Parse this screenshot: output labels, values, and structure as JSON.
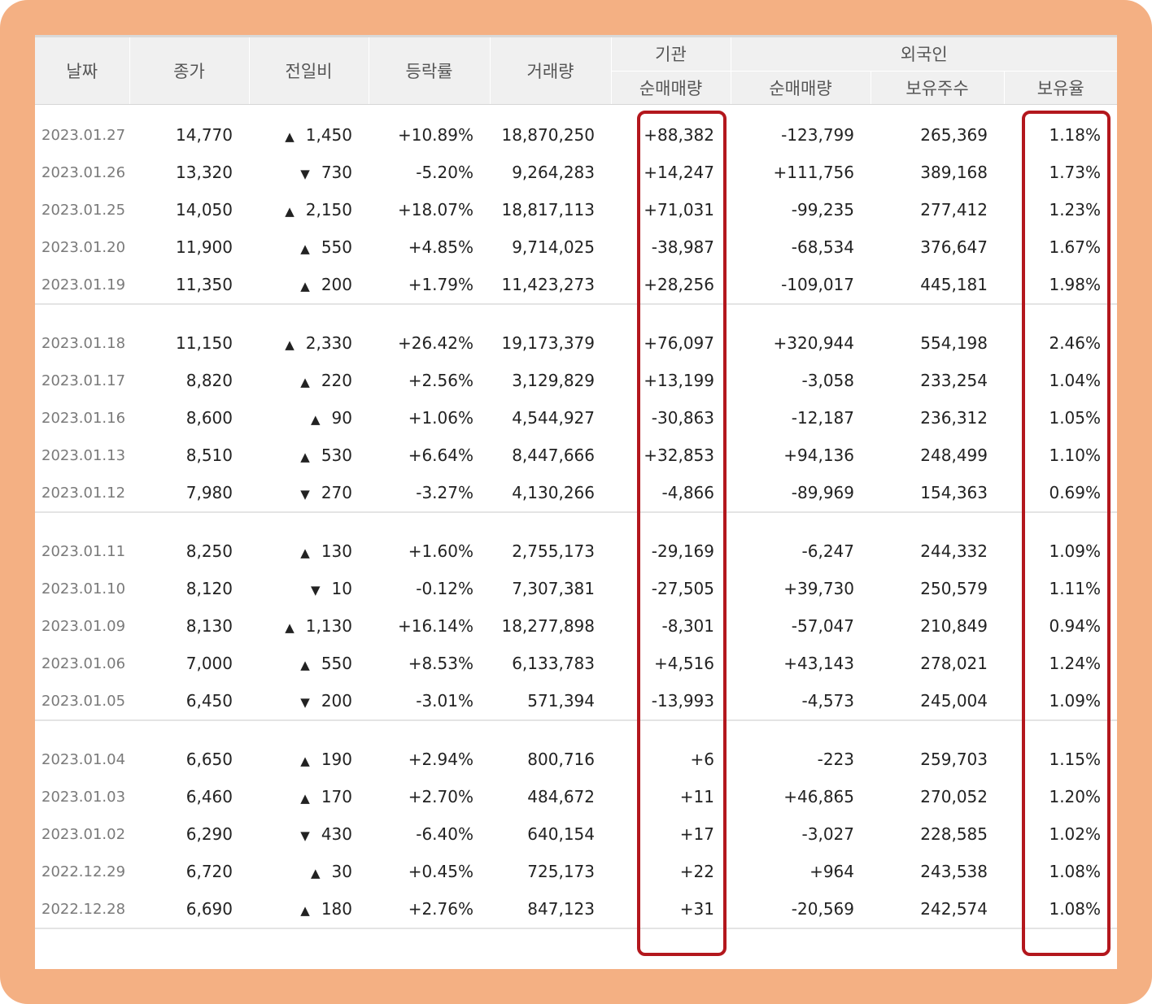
{
  "header": {
    "date": "날짜",
    "close": "종가",
    "change": "전일비",
    "rate": "등락률",
    "volume": "거래량",
    "institution_group": "기관",
    "institution_net": "순매매량",
    "foreign_group": "외국인",
    "foreign_net": "순매매량",
    "foreign_holdings": "보유주수",
    "foreign_ratio": "보유율"
  },
  "groups": [
    {
      "rows": [
        {
          "date": "2023.01.27",
          "close": "14,770",
          "dir": "up",
          "change": "1,450",
          "rate": "+10.89%",
          "volume": "18,870,250",
          "inst": "+88,382",
          "foreign": "-123,799",
          "holdings": "265,369",
          "ratio": "1.18%"
        },
        {
          "date": "2023.01.26",
          "close": "13,320",
          "dir": "down",
          "change": "730",
          "rate": "-5.20%",
          "volume": "9,264,283",
          "inst": "+14,247",
          "foreign": "+111,756",
          "holdings": "389,168",
          "ratio": "1.73%"
        },
        {
          "date": "2023.01.25",
          "close": "14,050",
          "dir": "up",
          "change": "2,150",
          "rate": "+18.07%",
          "volume": "18,817,113",
          "inst": "+71,031",
          "foreign": "-99,235",
          "holdings": "277,412",
          "ratio": "1.23%"
        },
        {
          "date": "2023.01.20",
          "close": "11,900",
          "dir": "up",
          "change": "550",
          "rate": "+4.85%",
          "volume": "9,714,025",
          "inst": "-38,987",
          "foreign": "-68,534",
          "holdings": "376,647",
          "ratio": "1.67%"
        },
        {
          "date": "2023.01.19",
          "close": "11,350",
          "dir": "up",
          "change": "200",
          "rate": "+1.79%",
          "volume": "11,423,273",
          "inst": "+28,256",
          "foreign": "-109,017",
          "holdings": "445,181",
          "ratio": "1.98%"
        }
      ]
    },
    {
      "rows": [
        {
          "date": "2023.01.18",
          "close": "11,150",
          "dir": "up",
          "change": "2,330",
          "rate": "+26.42%",
          "volume": "19,173,379",
          "inst": "+76,097",
          "foreign": "+320,944",
          "holdings": "554,198",
          "ratio": "2.46%"
        },
        {
          "date": "2023.01.17",
          "close": "8,820",
          "dir": "up",
          "change": "220",
          "rate": "+2.56%",
          "volume": "3,129,829",
          "inst": "+13,199",
          "foreign": "-3,058",
          "holdings": "233,254",
          "ratio": "1.04%"
        },
        {
          "date": "2023.01.16",
          "close": "8,600",
          "dir": "up",
          "change": "90",
          "rate": "+1.06%",
          "volume": "4,544,927",
          "inst": "-30,863",
          "foreign": "-12,187",
          "holdings": "236,312",
          "ratio": "1.05%"
        },
        {
          "date": "2023.01.13",
          "close": "8,510",
          "dir": "up",
          "change": "530",
          "rate": "+6.64%",
          "volume": "8,447,666",
          "inst": "+32,853",
          "foreign": "+94,136",
          "holdings": "248,499",
          "ratio": "1.10%"
        },
        {
          "date": "2023.01.12",
          "close": "7,980",
          "dir": "down",
          "change": "270",
          "rate": "-3.27%",
          "volume": "4,130,266",
          "inst": "-4,866",
          "foreign": "-89,969",
          "holdings": "154,363",
          "ratio": "0.69%"
        }
      ]
    },
    {
      "rows": [
        {
          "date": "2023.01.11",
          "close": "8,250",
          "dir": "up",
          "change": "130",
          "rate": "+1.60%",
          "volume": "2,755,173",
          "inst": "-29,169",
          "foreign": "-6,247",
          "holdings": "244,332",
          "ratio": "1.09%"
        },
        {
          "date": "2023.01.10",
          "close": "8,120",
          "dir": "down",
          "change": "10",
          "rate": "-0.12%",
          "volume": "7,307,381",
          "inst": "-27,505",
          "foreign": "+39,730",
          "holdings": "250,579",
          "ratio": "1.11%"
        },
        {
          "date": "2023.01.09",
          "close": "8,130",
          "dir": "up",
          "change": "1,130",
          "rate": "+16.14%",
          "volume": "18,277,898",
          "inst": "-8,301",
          "foreign": "-57,047",
          "holdings": "210,849",
          "ratio": "0.94%"
        },
        {
          "date": "2023.01.06",
          "close": "7,000",
          "dir": "up",
          "change": "550",
          "rate": "+8.53%",
          "volume": "6,133,783",
          "inst": "+4,516",
          "foreign": "+43,143",
          "holdings": "278,021",
          "ratio": "1.24%"
        },
        {
          "date": "2023.01.05",
          "close": "6,450",
          "dir": "down",
          "change": "200",
          "rate": "-3.01%",
          "volume": "571,394",
          "inst": "-13,993",
          "foreign": "-4,573",
          "holdings": "245,004",
          "ratio": "1.09%"
        }
      ]
    },
    {
      "rows": [
        {
          "date": "2023.01.04",
          "close": "6,650",
          "dir": "up",
          "change": "190",
          "rate": "+2.94%",
          "volume": "800,716",
          "inst": "+6",
          "foreign": "-223",
          "holdings": "259,703",
          "ratio": "1.15%"
        },
        {
          "date": "2023.01.03",
          "close": "6,460",
          "dir": "up",
          "change": "170",
          "rate": "+2.70%",
          "volume": "484,672",
          "inst": "+11",
          "foreign": "+46,865",
          "holdings": "270,052",
          "ratio": "1.20%"
        },
        {
          "date": "2023.01.02",
          "close": "6,290",
          "dir": "down",
          "change": "430",
          "rate": "-6.40%",
          "volume": "640,154",
          "inst": "+17",
          "foreign": "-3,027",
          "holdings": "228,585",
          "ratio": "1.02%"
        },
        {
          "date": "2022.12.29",
          "close": "6,720",
          "dir": "up",
          "change": "30",
          "rate": "+0.45%",
          "volume": "725,173",
          "inst": "+22",
          "foreign": "+964",
          "holdings": "243,538",
          "ratio": "1.08%"
        },
        {
          "date": "2022.12.28",
          "close": "6,690",
          "dir": "up",
          "change": "180",
          "rate": "+2.76%",
          "volume": "847,123",
          "inst": "+31",
          "foreign": "-20,569",
          "holdings": "242,574",
          "ratio": "1.08%"
        }
      ]
    }
  ],
  "colors": {
    "up": "#e31f26",
    "down": "#1a64c8",
    "highlight": "#b3171d",
    "frame": "#F4B083"
  },
  "icons": {
    "up": "triangle-up-icon",
    "down": "triangle-down-icon"
  }
}
